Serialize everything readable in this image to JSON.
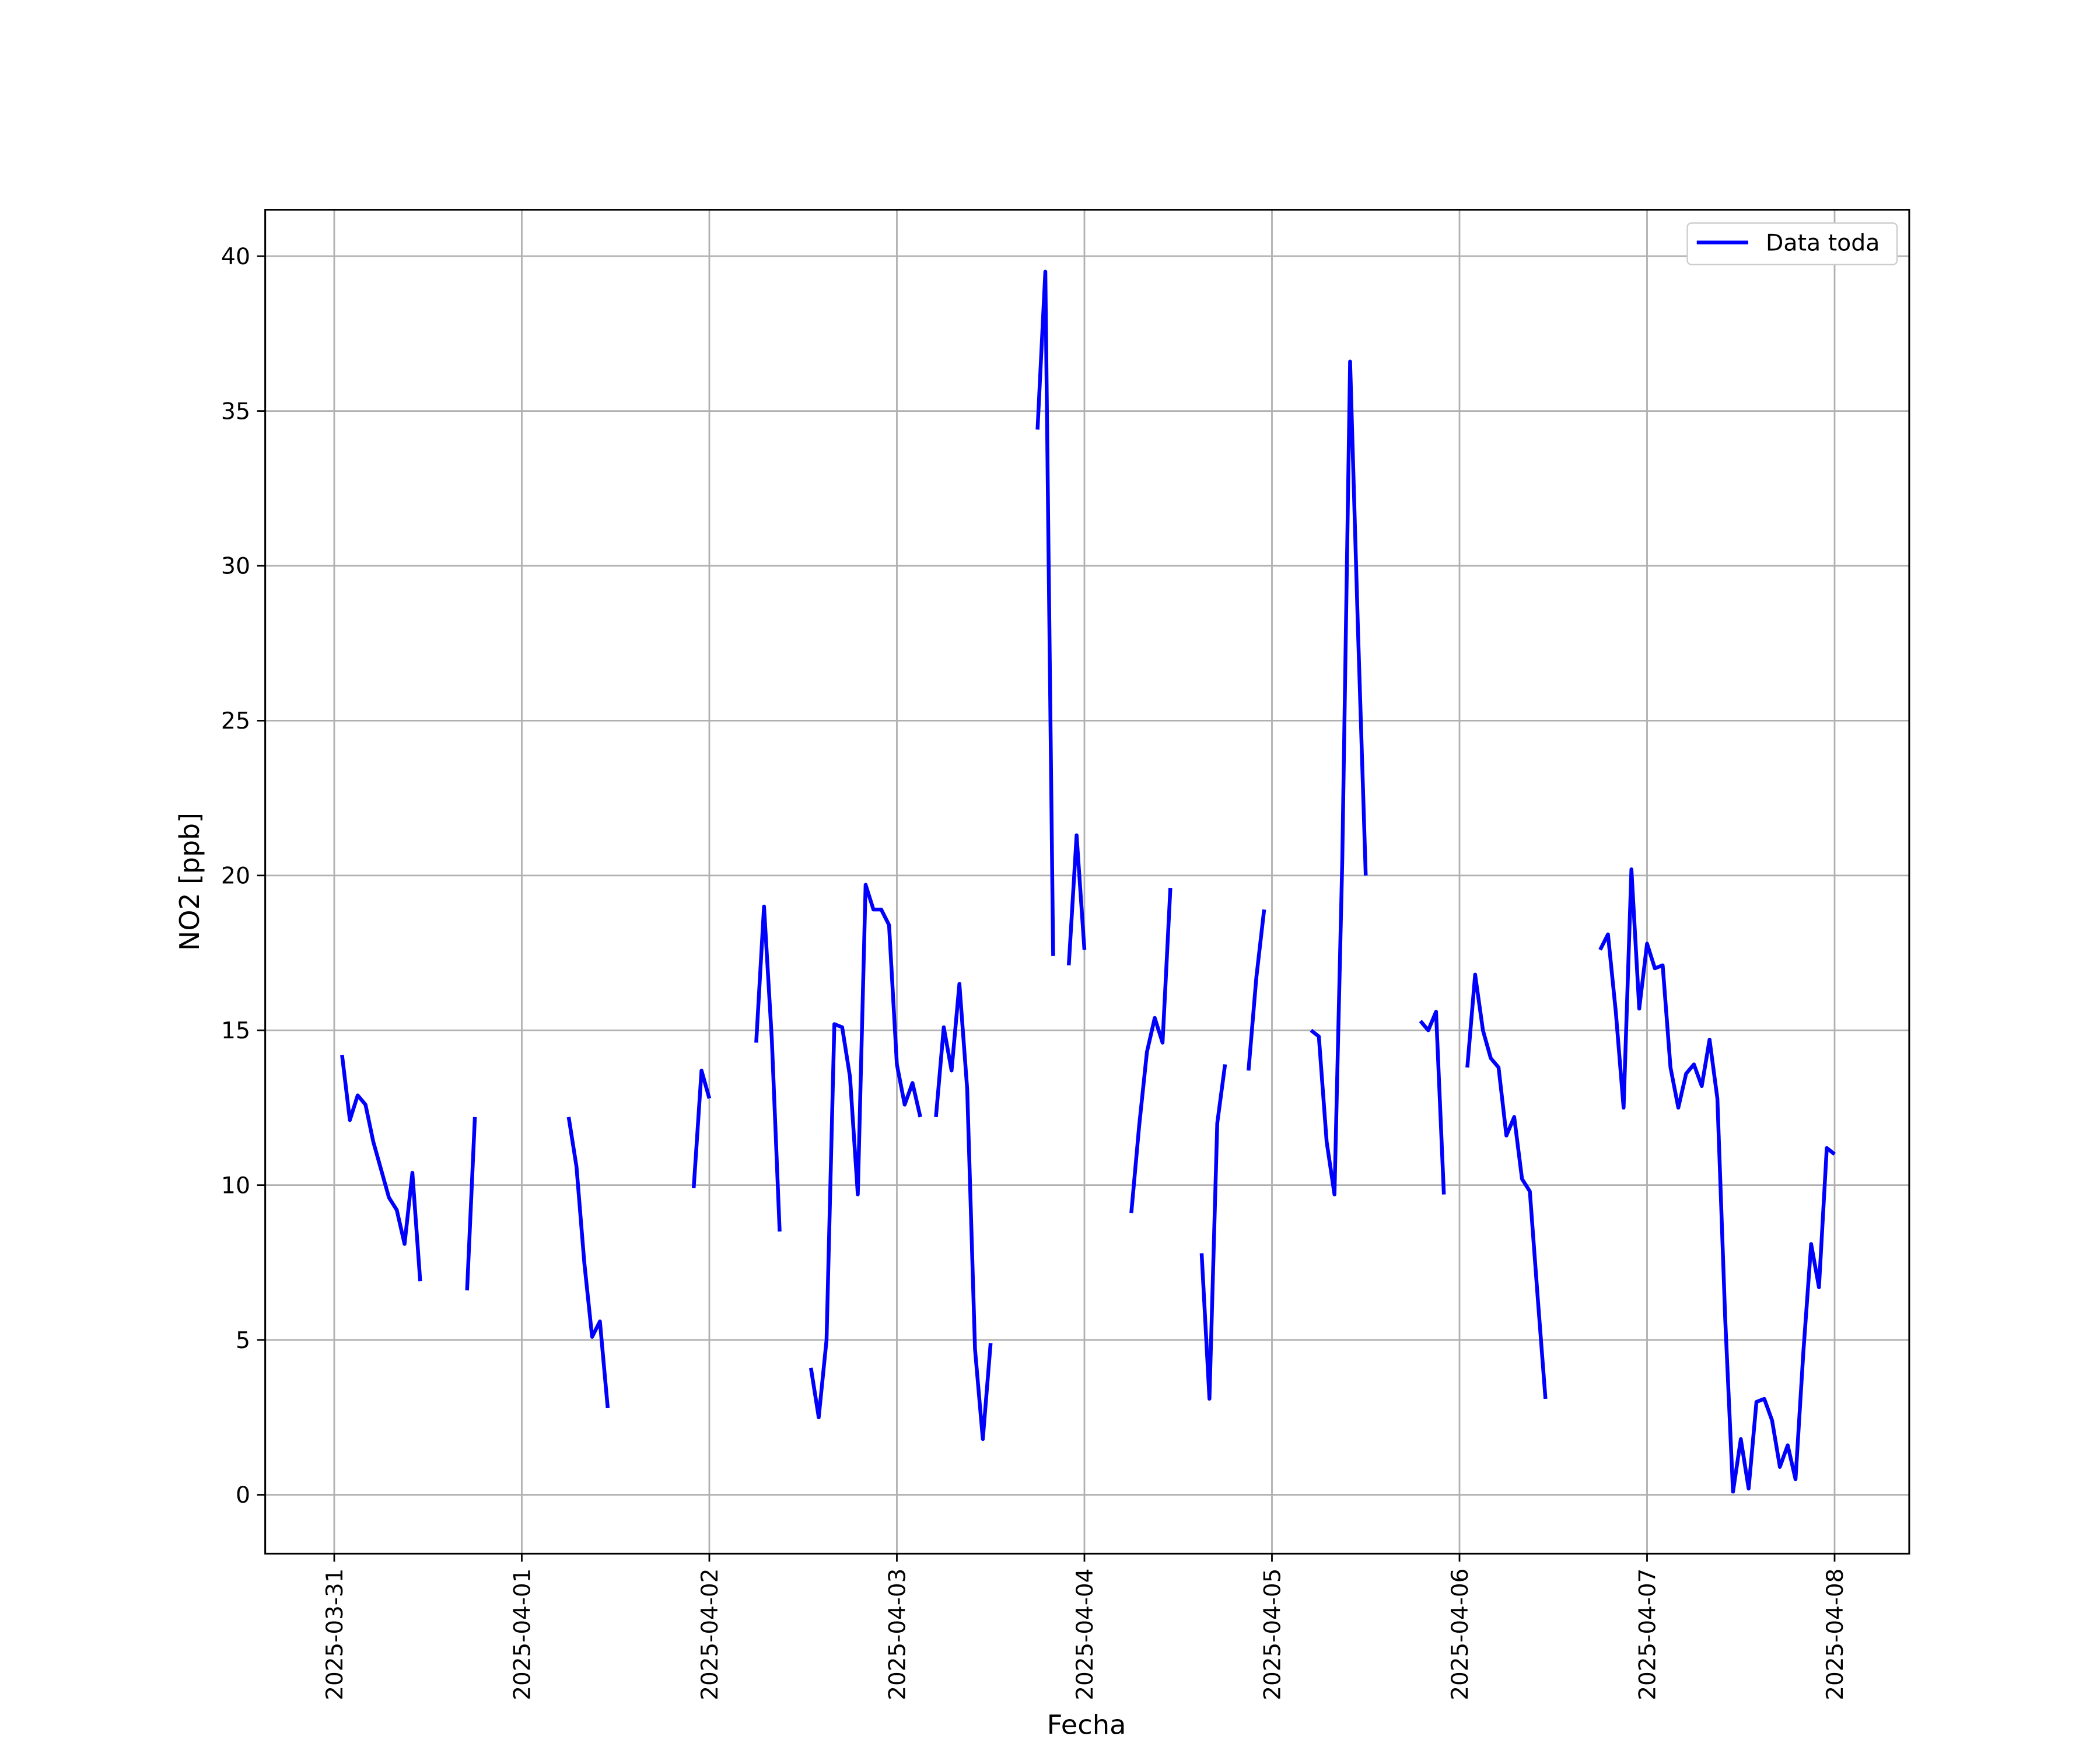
{
  "chart_data": {
    "type": "line",
    "xlabel": "Fecha",
    "ylabel": "NO2 [ppb]",
    "x": [
      "2025-03-31 01:00",
      "2025-03-31 02:00",
      "2025-03-31 03:00",
      "2025-03-31 04:00",
      "2025-03-31 05:00",
      "2025-03-31 06:00",
      "2025-03-31 07:00",
      "2025-03-31 08:00",
      "2025-03-31 09:00",
      "2025-03-31 10:00",
      "2025-03-31 11:00",
      "2025-03-31 12:00",
      "2025-03-31 17:00",
      "2025-03-31 18:00",
      "2025-03-31 19:00",
      "2025-04-01 06:00",
      "2025-04-01 07:00",
      "2025-04-01 08:00",
      "2025-04-01 09:00",
      "2025-04-01 10:00",
      "2025-04-01 11:00",
      "2025-04-01 12:00",
      "2025-04-01 22:00",
      "2025-04-01 23:00",
      "2025-04-02 00:00",
      "2025-04-02 01:00",
      "2025-04-02 06:00",
      "2025-04-02 07:00",
      "2025-04-02 08:00",
      "2025-04-02 09:00",
      "2025-04-02 10:00",
      "2025-04-02 13:00",
      "2025-04-02 14:00",
      "2025-04-02 15:00",
      "2025-04-02 16:00",
      "2025-04-02 17:00",
      "2025-04-02 18:00",
      "2025-04-02 19:00",
      "2025-04-02 20:00",
      "2025-04-02 21:00",
      "2025-04-02 22:00",
      "2025-04-02 23:00",
      "2025-04-03 00:00",
      "2025-04-03 01:00",
      "2025-04-03 02:00",
      "2025-04-03 03:00",
      "2025-04-03 04:00",
      "2025-04-03 05:00",
      "2025-04-03 06:00",
      "2025-04-03 07:00",
      "2025-04-03 08:00",
      "2025-04-03 09:00",
      "2025-04-03 10:00",
      "2025-04-03 11:00",
      "2025-04-03 12:00",
      "2025-04-03 13:00",
      "2025-04-03 18:00",
      "2025-04-03 19:00",
      "2025-04-03 20:00",
      "2025-04-03 21:00",
      "2025-04-03 22:00",
      "2025-04-03 23:00",
      "2025-04-04 00:00",
      "2025-04-04 01:00",
      "2025-04-04 06:00",
      "2025-04-04 07:00",
      "2025-04-04 08:00",
      "2025-04-04 09:00",
      "2025-04-04 10:00",
      "2025-04-04 11:00",
      "2025-04-04 12:00",
      "2025-04-04 15:00",
      "2025-04-04 16:00",
      "2025-04-04 17:00",
      "2025-04-04 18:00",
      "2025-04-04 19:00",
      "2025-04-04 21:00",
      "2025-04-04 22:00",
      "2025-04-04 23:00",
      "2025-04-05 00:00",
      "2025-04-05 05:00",
      "2025-04-05 06:00",
      "2025-04-05 07:00",
      "2025-04-05 08:00",
      "2025-04-05 09:00",
      "2025-04-05 10:00",
      "2025-04-05 11:00",
      "2025-04-05 12:00",
      "2025-04-05 13:00",
      "2025-04-05 19:00",
      "2025-04-05 20:00",
      "2025-04-05 21:00",
      "2025-04-05 22:00",
      "2025-04-05 23:00",
      "2025-04-06 01:00",
      "2025-04-06 02:00",
      "2025-04-06 03:00",
      "2025-04-06 04:00",
      "2025-04-06 05:00",
      "2025-04-06 06:00",
      "2025-04-06 07:00",
      "2025-04-06 08:00",
      "2025-04-06 09:00",
      "2025-04-06 10:00",
      "2025-04-06 11:00",
      "2025-04-06 12:00",
      "2025-04-06 18:00",
      "2025-04-06 19:00",
      "2025-04-06 20:00",
      "2025-04-06 21:00",
      "2025-04-06 22:00",
      "2025-04-06 23:00",
      "2025-04-07 00:00",
      "2025-04-07 01:00",
      "2025-04-07 02:00",
      "2025-04-07 03:00",
      "2025-04-07 04:00",
      "2025-04-07 05:00",
      "2025-04-07 06:00",
      "2025-04-07 07:00",
      "2025-04-07 08:00",
      "2025-04-07 09:00",
      "2025-04-07 10:00",
      "2025-04-07 11:00",
      "2025-04-07 12:00",
      "2025-04-07 13:00",
      "2025-04-07 14:00",
      "2025-04-07 15:00",
      "2025-04-07 16:00",
      "2025-04-07 17:00",
      "2025-04-07 18:00",
      "2025-04-07 19:00",
      "2025-04-07 20:00",
      "2025-04-07 21:00",
      "2025-04-07 22:00",
      "2025-04-07 23:00",
      "2025-04-08 00:00"
    ],
    "series": [
      {
        "name": "Data toda",
        "color": "#0000ff",
        "values": [
          14.2,
          12.1,
          12.9,
          12.6,
          11.4,
          10.5,
          9.6,
          9.2,
          8.1,
          10.4,
          6.9,
          null,
          6.6,
          12.2,
          null,
          12.2,
          10.6,
          7.5,
          5.1,
          5.6,
          2.8,
          null,
          9.9,
          13.7,
          12.8,
          null,
          14.6,
          19.0,
          14.7,
          8.5,
          null,
          4.1,
          2.5,
          5.0,
          15.2,
          15.1,
          13.5,
          9.7,
          19.7,
          18.9,
          18.9,
          18.4,
          13.9,
          12.6,
          13.3,
          12.2,
          null,
          12.2,
          15.1,
          13.7,
          16.5,
          13.1,
          4.7,
          1.8,
          4.9,
          null,
          34.4,
          39.5,
          17.4,
          null,
          17.1,
          21.3,
          17.6,
          null,
          9.1,
          11.9,
          14.3,
          15.4,
          14.6,
          19.6,
          null,
          7.8,
          3.1,
          12.0,
          13.9,
          null,
          13.7,
          16.7,
          18.9,
          null,
          15.0,
          14.8,
          11.4,
          9.7,
          20.5,
          36.6,
          28.0,
          20.0,
          null,
          15.3,
          15.0,
          15.6,
          9.7,
          null,
          13.8,
          16.8,
          15.0,
          14.1,
          13.8,
          11.6,
          12.2,
          10.2,
          9.8,
          6.4,
          3.1,
          null,
          17.6,
          18.1,
          15.6,
          12.5,
          20.2,
          15.7,
          17.8,
          17.0,
          17.1,
          13.8,
          12.5,
          13.6,
          13.9,
          13.2,
          14.7,
          12.8,
          5.7,
          0.1,
          1.8,
          0.2,
          3.0,
          3.1,
          2.4,
          0.9,
          1.6,
          0.5,
          4.6,
          8.1,
          6.7,
          11.2,
          11.0
        ]
      }
    ],
    "xlim": [
      "2025-03-30 15:10",
      "2025-04-08 09:33"
    ],
    "xticks": [
      "2025-03-31",
      "2025-04-01",
      "2025-04-02",
      "2025-04-03",
      "2025-04-04",
      "2025-04-05",
      "2025-04-06",
      "2025-04-07",
      "2025-04-08"
    ],
    "ylim": [
      -1.9,
      41.5
    ],
    "yticks": [
      0,
      5,
      10,
      15,
      20,
      25,
      30,
      35,
      40
    ],
    "grid": true,
    "legend": "upper right"
  }
}
